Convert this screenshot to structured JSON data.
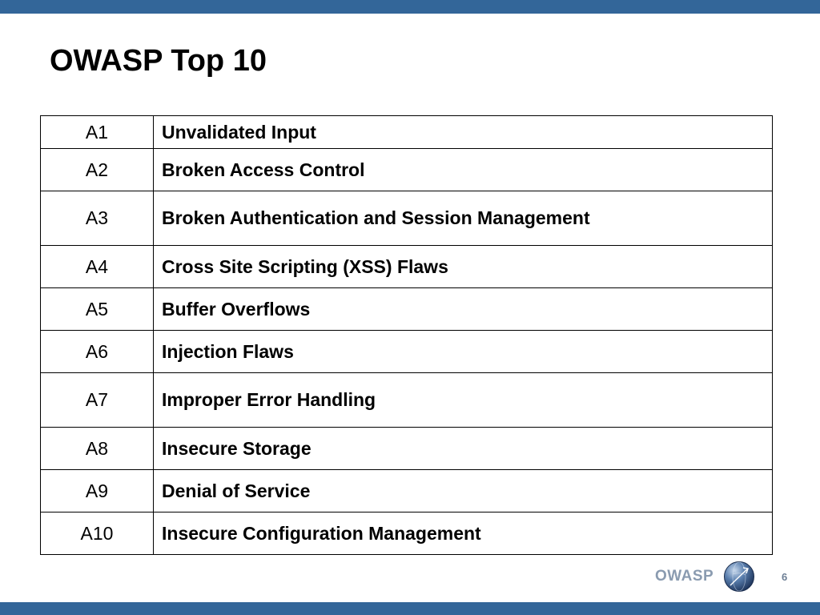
{
  "slide": {
    "title": "OWASP Top 10",
    "page_number": "6"
  },
  "table": {
    "rows": [
      {
        "code": "A1",
        "name": "Unvalidated Input"
      },
      {
        "code": "A2",
        "name": "Broken Access Control"
      },
      {
        "code": "A3",
        "name": "Broken Authentication and Session Management"
      },
      {
        "code": "A4",
        "name": "Cross Site Scripting (XSS) Flaws"
      },
      {
        "code": "A5",
        "name": "Buffer Overflows"
      },
      {
        "code": "A6",
        "name": "Injection Flaws"
      },
      {
        "code": "A7",
        "name": "Improper Error Handling"
      },
      {
        "code": "A8",
        "name": "Insecure Storage"
      },
      {
        "code": "A9",
        "name": "Denial of Service"
      },
      {
        "code": "A10",
        "name": "Insecure Configuration Management"
      }
    ]
  },
  "footer": {
    "logo_text": "OWASP",
    "logo_icon": "owasp-globe-icon"
  },
  "colors": {
    "bar": "#336699",
    "logo_text": "#8a9bb0",
    "page_number": "#6d7f95"
  }
}
